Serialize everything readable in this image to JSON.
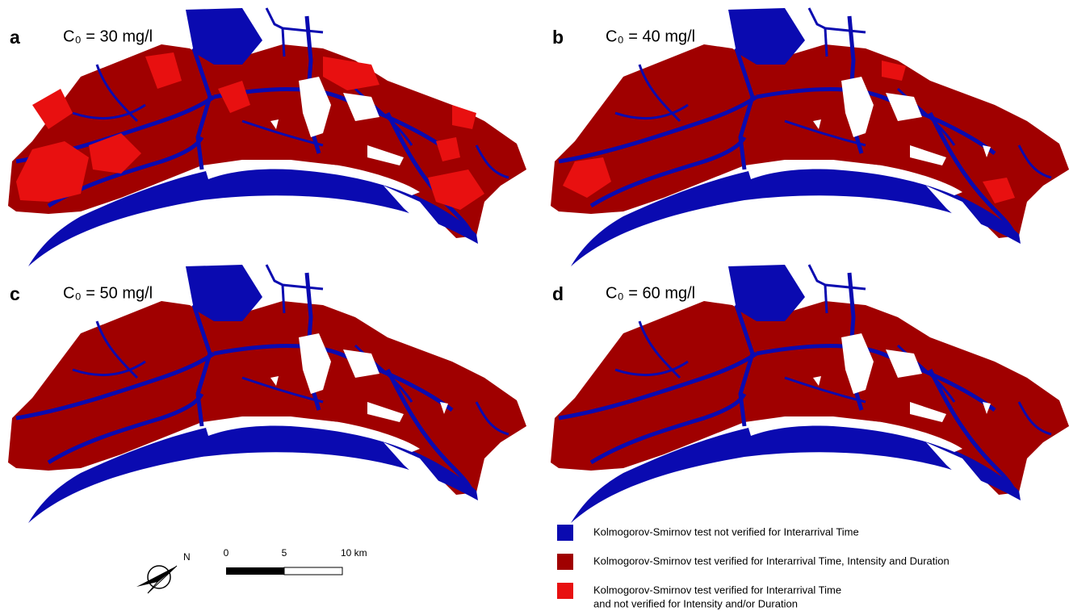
{
  "panels": [
    {
      "letter": "a",
      "label": "C₀ = 30 mg/l"
    },
    {
      "letter": "b",
      "label": "C₀ = 40 mg/l"
    },
    {
      "letter": "c",
      "label": "C₀ = 50 mg/l"
    },
    {
      "letter": "d",
      "label": "C₀ = 60 mg/l"
    }
  ],
  "north": "N",
  "scale_bar": {
    "labels": [
      "0",
      "5",
      "10 km"
    ]
  },
  "legend": [
    {
      "color": "#0a0ab0",
      "lines": [
        "Kolmogorov-Smirnov test not verified for Interarrival Time"
      ]
    },
    {
      "color": "#a00000",
      "lines": [
        "Kolmogorov-Smirnov test verified for Interarrival Time, Intensity and Duration"
      ]
    },
    {
      "color": "#e81010",
      "lines": [
        "Kolmogorov-Smirnov test verified for Interarrival Time",
        "and not verified for Intensity and/or Duration"
      ]
    }
  ]
}
